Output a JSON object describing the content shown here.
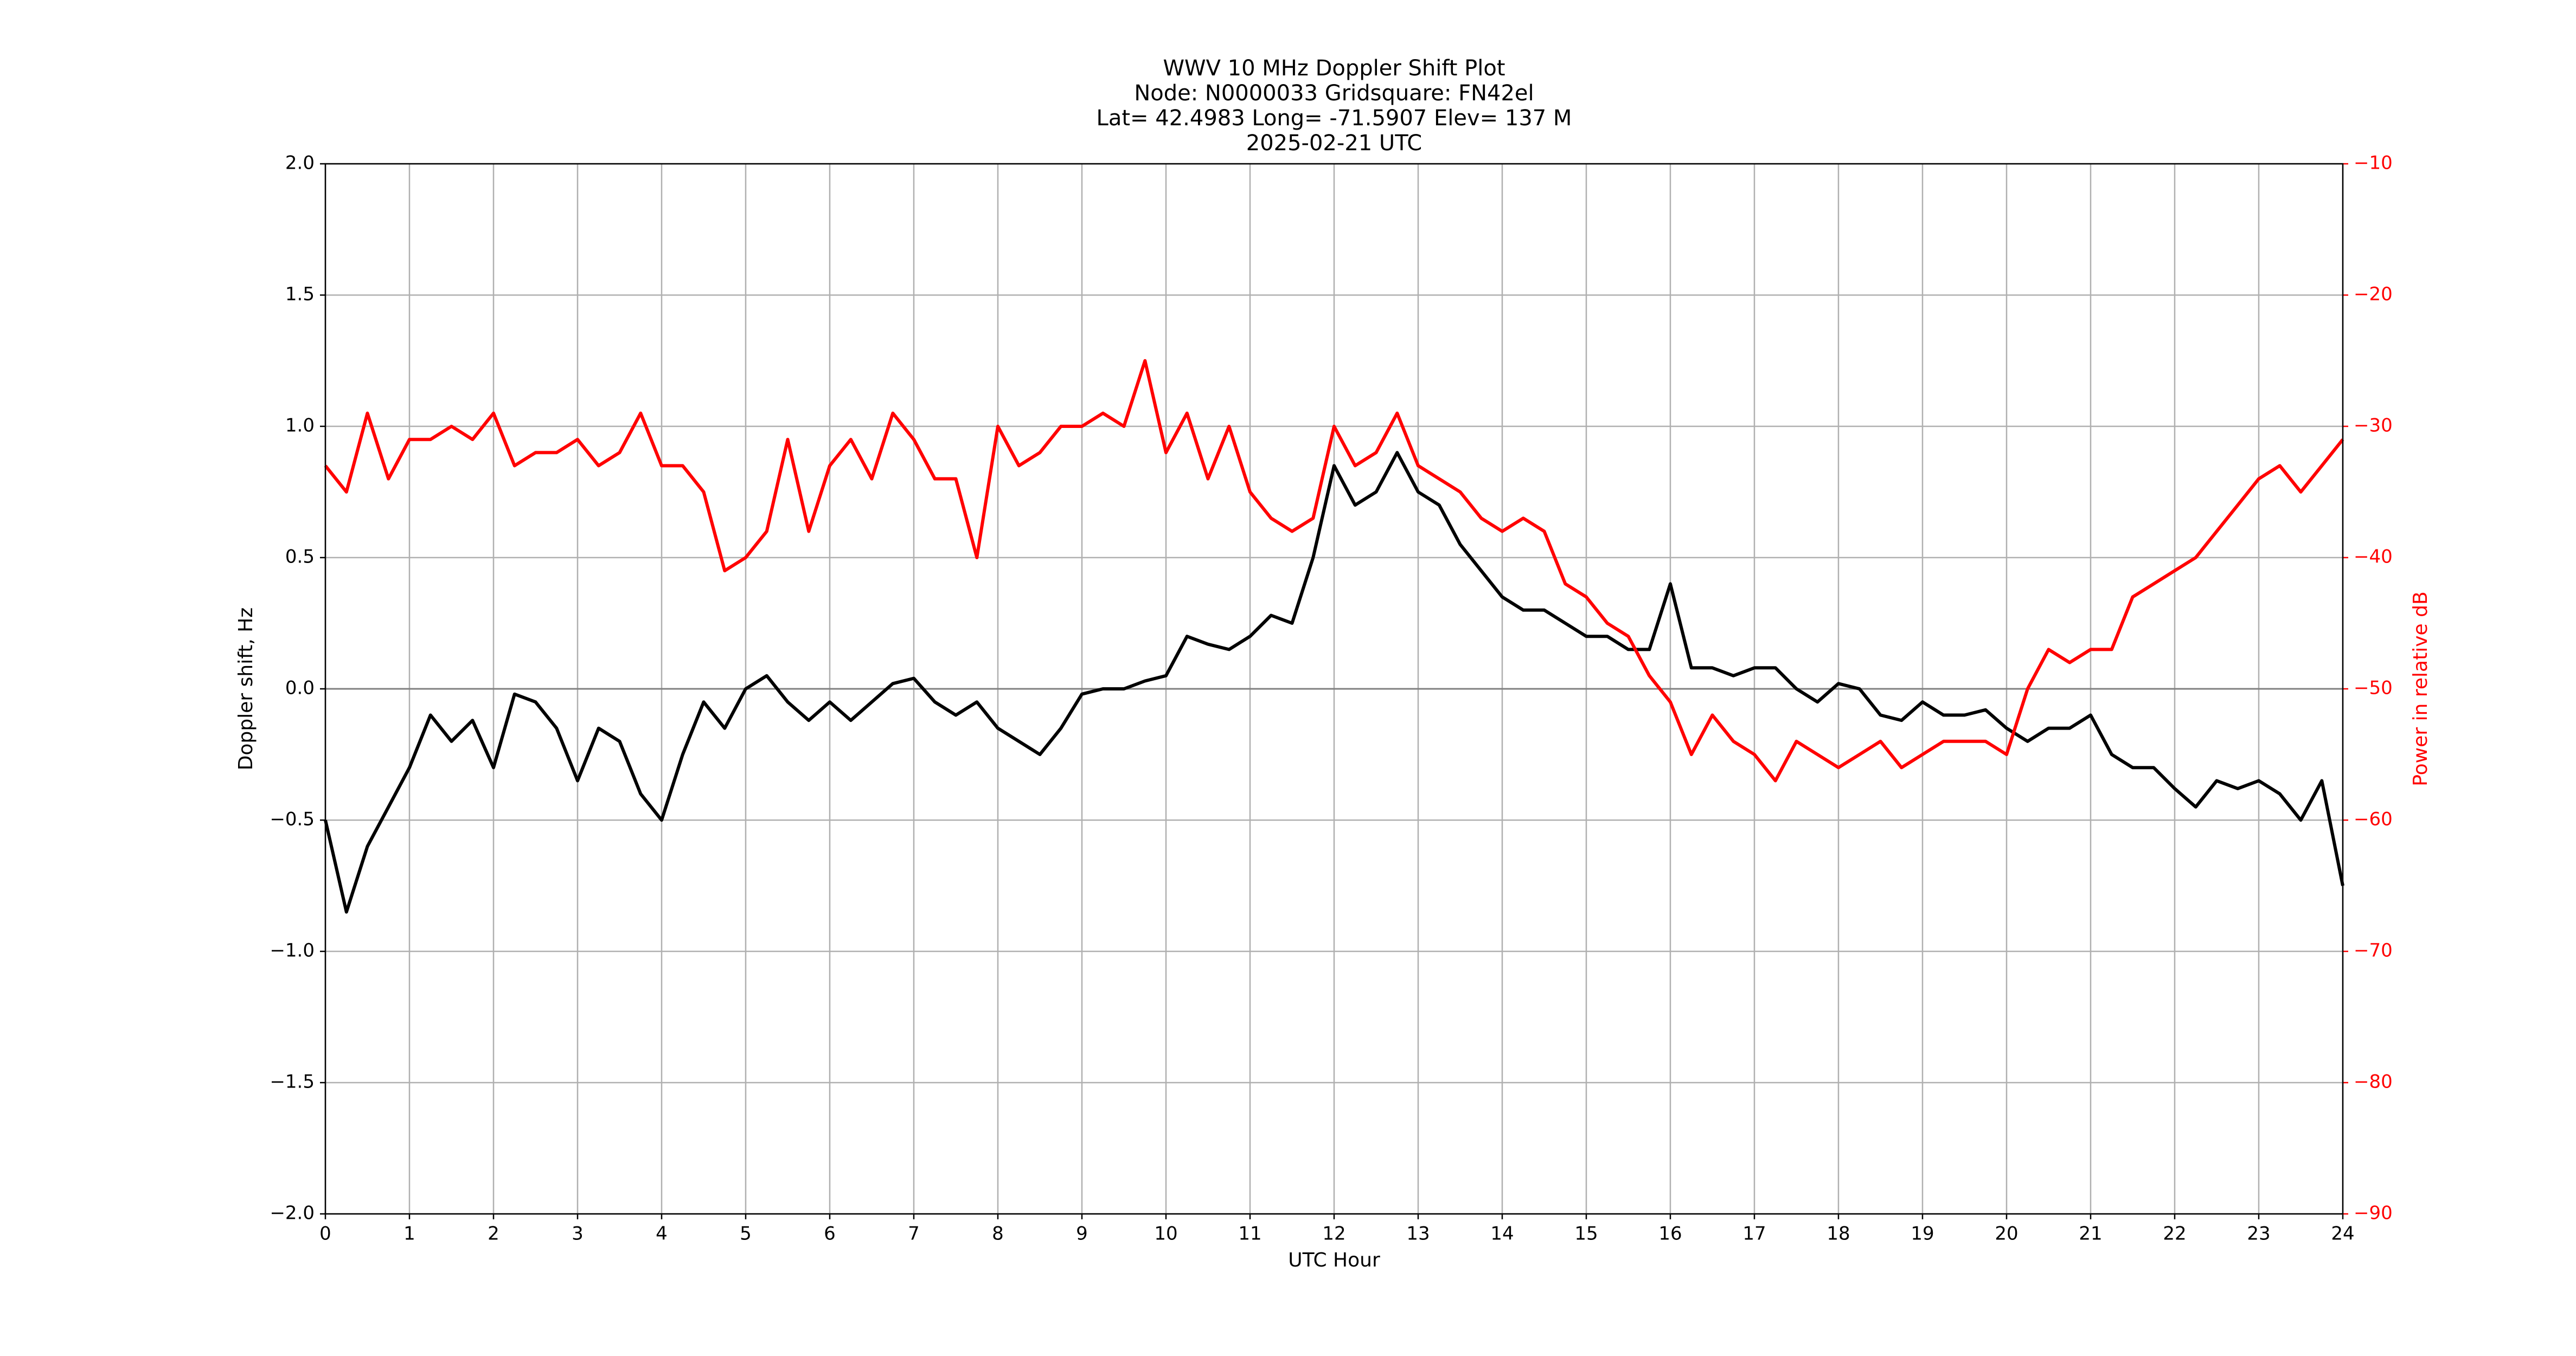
{
  "chart_data": {
    "type": "line",
    "title": [
      "WWV 10 MHz Doppler Shift Plot",
      "Node:  N0000033     Gridsquare:  FN42el",
      "Lat= 42.4983    Long= -71.5907    Elev= 137 M",
      "2025-02-21  UTC"
    ],
    "xlabel": "UTC Hour",
    "ylabel": "Doppler shift, Hz",
    "y2label": "Power in relative dB",
    "y2color": "#ff0000",
    "grid": true,
    "hlines": [
      0
    ],
    "xlim": [
      0,
      24
    ],
    "xticks": [
      0,
      1,
      2,
      3,
      4,
      5,
      6,
      7,
      8,
      9,
      10,
      11,
      12,
      13,
      14,
      15,
      16,
      17,
      18,
      19,
      20,
      21,
      22,
      23,
      24
    ],
    "ylim": [
      -2,
      2
    ],
    "yticks": [
      {
        "value": -2,
        "label": "−2.0"
      },
      {
        "value": -1.5,
        "label": "−1.5"
      },
      {
        "value": -1,
        "label": "−1.0"
      },
      {
        "value": -0.5,
        "label": "−0.5"
      },
      {
        "value": 0,
        "label": "0.0"
      },
      {
        "value": 0.5,
        "label": "0.5"
      },
      {
        "value": 1,
        "label": "1.0"
      },
      {
        "value": 1.5,
        "label": "1.5"
      },
      {
        "value": 2,
        "label": "2.0"
      }
    ],
    "y2lim": [
      -90,
      -10
    ],
    "y2ticks": [
      {
        "value": -90,
        "label": "−90"
      },
      {
        "value": -80,
        "label": "−80"
      },
      {
        "value": -70,
        "label": "−70"
      },
      {
        "value": -60,
        "label": "−60"
      },
      {
        "value": -50,
        "label": "−50"
      },
      {
        "value": -40,
        "label": "−40"
      },
      {
        "value": -30,
        "label": "−30"
      },
      {
        "value": -20,
        "label": "−20"
      },
      {
        "value": -10,
        "label": "−10"
      }
    ],
    "x": [
      0,
      0.25,
      0.5,
      0.75,
      1,
      1.25,
      1.5,
      1.75,
      2,
      2.25,
      2.5,
      2.75,
      3,
      3.25,
      3.5,
      3.75,
      4,
      4.25,
      4.5,
      4.75,
      5,
      5.25,
      5.5,
      5.75,
      6,
      6.25,
      6.5,
      6.75,
      7,
      7.25,
      7.5,
      7.75,
      8,
      8.25,
      8.5,
      8.75,
      9,
      9.25,
      9.5,
      9.75,
      10,
      10.25,
      10.5,
      10.75,
      11,
      11.25,
      11.5,
      11.75,
      12,
      12.25,
      12.5,
      12.75,
      13,
      13.25,
      13.5,
      13.75,
      14,
      14.25,
      14.5,
      14.75,
      15,
      15.25,
      15.5,
      15.75,
      16,
      16.25,
      16.5,
      16.75,
      17,
      17.25,
      17.5,
      17.75,
      18,
      18.25,
      18.5,
      18.75,
      19,
      19.25,
      19.5,
      19.75,
      20,
      20.25,
      20.5,
      20.75,
      21,
      21.25,
      21.5,
      21.75,
      22,
      22.25,
      22.5,
      22.75,
      23,
      23.25,
      23.5,
      23.75,
      24
    ],
    "series": [
      {
        "color": "#000000",
        "axis": "y",
        "values": [
          -0.5,
          -0.85,
          -0.6,
          -0.45,
          -0.3,
          -0.1,
          -0.2,
          -0.12,
          -0.3,
          -0.02,
          -0.05,
          -0.15,
          -0.35,
          -0.15,
          -0.2,
          -0.4,
          -0.5,
          -0.25,
          -0.05,
          -0.15,
          0.0,
          0.05,
          -0.05,
          -0.12,
          -0.05,
          -0.12,
          -0.05,
          0.02,
          0.04,
          -0.05,
          -0.1,
          -0.05,
          -0.15,
          -0.2,
          -0.25,
          -0.15,
          -0.02,
          0.0,
          0.0,
          0.03,
          0.05,
          0.2,
          0.17,
          0.15,
          0.2,
          0.28,
          0.25,
          0.5,
          0.85,
          0.7,
          0.75,
          0.9,
          0.75,
          0.7,
          0.55,
          0.45,
          0.35,
          0.3,
          0.3,
          0.25,
          0.2,
          0.2,
          0.15,
          0.15,
          0.4,
          0.08,
          0.08,
          0.05,
          0.08,
          0.08,
          0.0,
          -0.05,
          0.02,
          0.0,
          -0.1,
          -0.12,
          -0.05,
          -0.1,
          -0.1,
          -0.08,
          -0.15,
          -0.2,
          -0.15,
          -0.15,
          -0.1,
          -0.25,
          -0.3,
          -0.3,
          -0.38,
          -0.45,
          -0.35,
          -0.38,
          -0.35,
          -0.4,
          -0.5,
          -0.35,
          -0.75
        ]
      },
      {
        "color": "#ff0000",
        "axis": "y2",
        "values": [
          -33,
          -35,
          -29,
          -34,
          -31,
          -31,
          -30,
          -31,
          -29,
          -33,
          -32,
          -32,
          -31,
          -33,
          -32,
          -29,
          -33,
          -33,
          -35,
          -41,
          -40,
          -38,
          -31,
          -38,
          -33,
          -31,
          -34,
          -29,
          -31,
          -34,
          -34,
          -40,
          -30,
          -33,
          -32,
          -30,
          -30,
          -29,
          -30,
          -25,
          -32,
          -29,
          -34,
          -30,
          -35,
          -37,
          -38,
          -37,
          -30,
          -33,
          -32,
          -29,
          -33,
          -34,
          -35,
          -37,
          -38,
          -37,
          -38,
          -42,
          -43,
          -45,
          -46,
          -49,
          -51,
          -55,
          -52,
          -54,
          -55,
          -57,
          -54,
          -55,
          -56,
          -55,
          -54,
          -56,
          -55,
          -54,
          -54,
          -54,
          -55,
          -50,
          -47,
          -48,
          -47,
          -47,
          -43,
          -42,
          -41,
          -40,
          -38,
          -36,
          -34,
          -33,
          -35,
          -33,
          -31
        ]
      }
    ]
  }
}
